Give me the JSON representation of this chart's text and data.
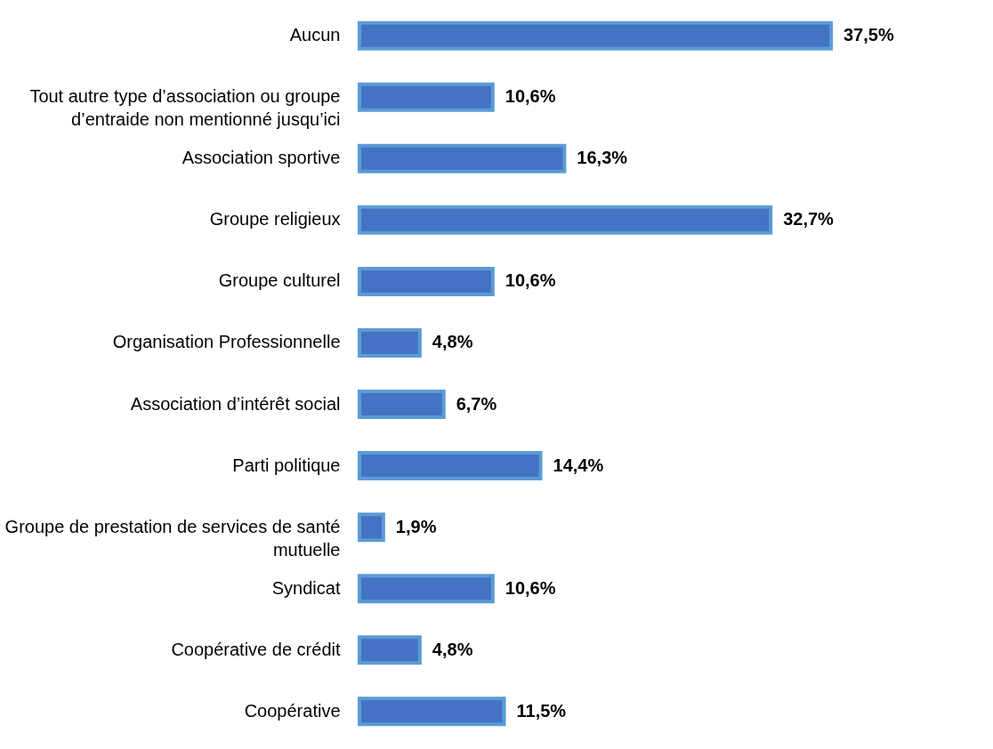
{
  "chart_data": {
    "type": "bar",
    "orientation": "horizontal",
    "categories": [
      "Aucun",
      "Tout autre type d’association ou groupe d’entraide non mentionné jusqu’ici",
      "Association sportive",
      "Groupe religieux",
      "Groupe culturel",
      "Organisation Professionnelle",
      "Association d’intérêt social",
      "Parti politique",
      "Groupe de prestation de services de santé mutuelle",
      "Syndicat",
      "Coopérative de crédit",
      "Coopérative"
    ],
    "values": [
      37.5,
      10.6,
      16.3,
      32.7,
      10.6,
      4.8,
      6.7,
      14.4,
      1.9,
      10.6,
      4.8,
      11.5
    ],
    "value_labels": [
      "37,5%",
      "10,6%",
      "16,3%",
      "32,7%",
      "10,6%",
      "4,8%",
      "6,7%",
      "14,4%",
      "1,9%",
      "10,6%",
      "4,8%",
      "11,5%"
    ],
    "color": "#4472c4"
  }
}
